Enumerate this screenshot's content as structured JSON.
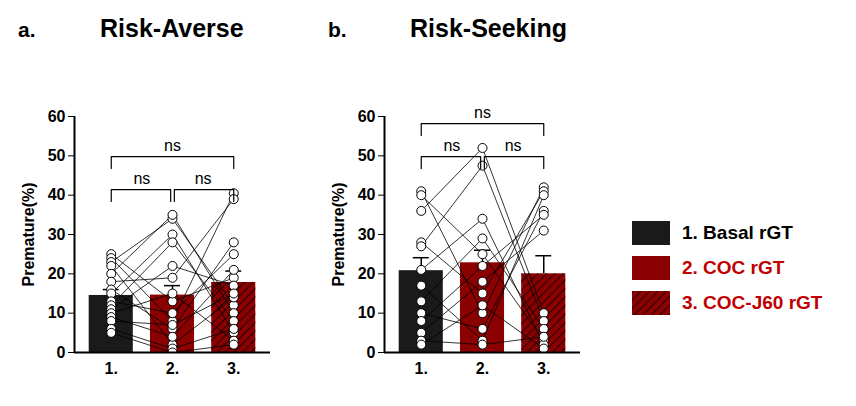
{
  "chart_data": [
    {
      "type": "bar",
      "panel": "a.",
      "title": "Risk-Averse",
      "categories": [
        "1.",
        "2.",
        "3."
      ],
      "values": [
        14.5,
        14.6,
        17.8
      ],
      "error": [
        1.5,
        2.4,
        2.9
      ],
      "colors": [
        "#1a1a1a",
        "#8b0000",
        "#8b0000"
      ],
      "points": [
        [
          25,
          13,
          19
        ],
        [
          24,
          8,
          40.5
        ],
        [
          23,
          34,
          12
        ],
        [
          22,
          2,
          14
        ],
        [
          20,
          35,
          10
        ],
        [
          18,
          19,
          39
        ],
        [
          16,
          6,
          28
        ],
        [
          15,
          30,
          5
        ],
        [
          13,
          10,
          25
        ],
        [
          12,
          28,
          8
        ],
        [
          11,
          22,
          17
        ],
        [
          10,
          15,
          3
        ],
        [
          9,
          4,
          21
        ],
        [
          8,
          7,
          15
        ],
        [
          6,
          1,
          6
        ],
        [
          5,
          0,
          2
        ]
      ],
      "ylabel": "Premature(%)",
      "ylim": [
        0,
        60
      ],
      "yticks": [
        0,
        10,
        20,
        30,
        40,
        50,
        60
      ],
      "comparisons": [
        {
          "from": "1.",
          "to": "2.",
          "label": "ns"
        },
        {
          "from": "2.",
          "to": "3.",
          "label": "ns"
        },
        {
          "from": "1.",
          "to": "3.",
          "label": "ns"
        }
      ]
    },
    {
      "type": "bar",
      "panel": "b.",
      "title": "Risk-Seeking",
      "categories": [
        "1.",
        "2.",
        "3."
      ],
      "values": [
        20.8,
        22.8,
        20.0
      ],
      "error": [
        3.3,
        3.2,
        4.6
      ],
      "colors": [
        "#1a1a1a",
        "#8b0000",
        "#8b0000"
      ],
      "points": [
        [
          41,
          10,
          42
        ],
        [
          40,
          25,
          3
        ],
        [
          36,
          52,
          10
        ],
        [
          28,
          15,
          41
        ],
        [
          27,
          47.5,
          8
        ],
        [
          21,
          34,
          2
        ],
        [
          17,
          3,
          40
        ],
        [
          13,
          29,
          6
        ],
        [
          10,
          6,
          36
        ],
        [
          8,
          22,
          35
        ],
        [
          5,
          18,
          31
        ],
        [
          3,
          2,
          4
        ],
        [
          2,
          12,
          1
        ]
      ],
      "ylabel": "Premature(%)",
      "ylim": [
        0,
        60
      ],
      "yticks": [
        0,
        10,
        20,
        30,
        40,
        50,
        60
      ],
      "comparisons": [
        {
          "from": "1.",
          "to": "2.",
          "label": "ns"
        },
        {
          "from": "2.",
          "to": "3.",
          "label": "ns"
        },
        {
          "from": "1.",
          "to": "3.",
          "label": "ns"
        }
      ],
      "legend": "right",
      "category_names": [
        "1. Basal rGT",
        "2. COC rGT",
        "3. COC-J60 rGT"
      ]
    }
  ]
}
